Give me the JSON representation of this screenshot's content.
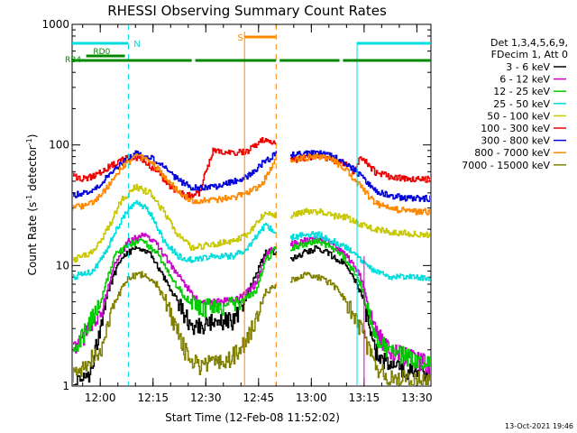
{
  "chart_data": {
    "type": "line",
    "title": "RHESSI Observing Summary Count Rates",
    "xlabel": "Start Time (12-Feb-08 11:52:02)",
    "ylabel_main": "Count Rate (s",
    "ylabel_sup1": "-1",
    "ylabel_mid": " detector",
    "ylabel_sup2": "-1",
    "ylabel_end": ")",
    "y_scale": "log",
    "ylim": [
      1,
      1000
    ],
    "xlim_minutes_after_1152": [
      0,
      102
    ],
    "x_ticks": [
      {
        "label": "12:00",
        "m": 8
      },
      {
        "label": "12:15",
        "m": 23
      },
      {
        "label": "12:30",
        "m": 38
      },
      {
        "label": "12:45",
        "m": 53
      },
      {
        "label": "13:00",
        "m": 68
      },
      {
        "label": "13:15",
        "m": 83
      },
      {
        "label": "13:30",
        "m": 98
      }
    ],
    "y_ticks": [
      {
        "label": "1",
        "v": 1
      },
      {
        "label": "10",
        "v": 10
      },
      {
        "label": "100",
        "v": 100
      },
      {
        "label": "1000",
        "v": 1000
      }
    ],
    "legend_title": [
      "Det 1,3,4,5,6,9,",
      "FDecim 1, Att 0"
    ],
    "timestamp": "13-Oct-2021 19:46",
    "flag_labels": {
      "n": "N",
      "s": "S",
      "rd0": "RD0",
      "rb4": "RB4"
    },
    "flags": {
      "n_segments": [
        [
          0,
          16
        ],
        [
          81,
          102
        ]
      ],
      "s_segments": [
        [
          49,
          58
        ]
      ],
      "rd0_segments": [
        [
          4,
          15
        ]
      ],
      "rb4_segments": [
        [
          0,
          34
        ],
        [
          35,
          58
        ],
        [
          59,
          76
        ],
        [
          77,
          102
        ]
      ]
    },
    "vertical_markers": {
      "cyan_dashed": [
        16,
        102
      ],
      "orange_dashed": [
        58
      ],
      "cyan_solid": [
        0,
        81
      ],
      "orange_solid": [
        49
      ],
      "magenta_solid": [
        83
      ]
    },
    "gap_minutes": [
      58,
      62
    ],
    "series": [
      {
        "name": "3 - 6 keV",
        "color": "#000000",
        "points": [
          [
            0,
            1.0
          ],
          [
            5,
            1.3
          ],
          [
            10,
            6
          ],
          [
            14,
            12
          ],
          [
            18,
            14
          ],
          [
            22,
            13
          ],
          [
            26,
            8
          ],
          [
            30,
            5
          ],
          [
            34,
            3
          ],
          [
            40,
            3.5
          ],
          [
            46,
            3.5
          ],
          [
            50,
            6
          ],
          [
            55,
            13
          ],
          [
            58,
            13
          ],
          [
            62,
            11
          ],
          [
            66,
            13
          ],
          [
            70,
            14
          ],
          [
            74,
            12
          ],
          [
            78,
            10
          ],
          [
            82,
            6
          ],
          [
            86,
            2
          ],
          [
            90,
            1.5
          ],
          [
            102,
            1.2
          ]
        ]
      },
      {
        "name": "6 - 12 keV",
        "color": "#cc00cc",
        "points": [
          [
            0,
            2
          ],
          [
            8,
            4
          ],
          [
            12,
            10
          ],
          [
            16,
            16
          ],
          [
            20,
            18
          ],
          [
            24,
            15
          ],
          [
            28,
            10
          ],
          [
            32,
            7
          ],
          [
            36,
            5
          ],
          [
            42,
            5
          ],
          [
            48,
            5.5
          ],
          [
            52,
            7
          ],
          [
            55,
            12
          ],
          [
            58,
            15
          ],
          [
            62,
            15
          ],
          [
            66,
            16
          ],
          [
            70,
            17
          ],
          [
            74,
            15
          ],
          [
            78,
            12
          ],
          [
            82,
            8
          ],
          [
            86,
            3
          ],
          [
            90,
            2
          ],
          [
            102,
            1.5
          ]
        ]
      },
      {
        "name": "12 - 25 keV",
        "color": "#00cc00",
        "points": [
          [
            0,
            1.8
          ],
          [
            8,
            5
          ],
          [
            12,
            12
          ],
          [
            16,
            15
          ],
          [
            20,
            16
          ],
          [
            24,
            13
          ],
          [
            28,
            8
          ],
          [
            32,
            5.5
          ],
          [
            36,
            4.5
          ],
          [
            42,
            4.5
          ],
          [
            48,
            5
          ],
          [
            52,
            6
          ],
          [
            55,
            11
          ],
          [
            58,
            14
          ],
          [
            62,
            14
          ],
          [
            66,
            15
          ],
          [
            70,
            16
          ],
          [
            74,
            14
          ],
          [
            78,
            11
          ],
          [
            82,
            7
          ],
          [
            86,
            2.5
          ],
          [
            90,
            2
          ],
          [
            102,
            1.5
          ]
        ]
      },
      {
        "name": "25 - 50 keV",
        "color": "#00dddd",
        "points": [
          [
            0,
            8
          ],
          [
            6,
            9
          ],
          [
            10,
            14
          ],
          [
            14,
            24
          ],
          [
            18,
            35
          ],
          [
            22,
            28
          ],
          [
            26,
            16
          ],
          [
            30,
            12
          ],
          [
            34,
            11
          ],
          [
            40,
            12
          ],
          [
            46,
            12
          ],
          [
            50,
            14
          ],
          [
            55,
            22
          ],
          [
            58,
            18
          ],
          [
            62,
            17
          ],
          [
            66,
            18
          ],
          [
            70,
            18
          ],
          [
            74,
            16
          ],
          [
            78,
            14
          ],
          [
            82,
            11
          ],
          [
            86,
            9
          ],
          [
            90,
            8
          ],
          [
            102,
            8
          ]
        ]
      },
      {
        "name": "50 - 100 keV",
        "color": "#c8c800",
        "points": [
          [
            0,
            11
          ],
          [
            6,
            13
          ],
          [
            10,
            20
          ],
          [
            14,
            35
          ],
          [
            18,
            45
          ],
          [
            22,
            40
          ],
          [
            26,
            28
          ],
          [
            30,
            18
          ],
          [
            34,
            14
          ],
          [
            40,
            15
          ],
          [
            46,
            16
          ],
          [
            50,
            18
          ],
          [
            55,
            28
          ],
          [
            58,
            26
          ],
          [
            62,
            26
          ],
          [
            66,
            28
          ],
          [
            70,
            28
          ],
          [
            74,
            26
          ],
          [
            78,
            25
          ],
          [
            82,
            22
          ],
          [
            86,
            20
          ],
          [
            90,
            19
          ],
          [
            102,
            18
          ]
        ]
      },
      {
        "name": "100 - 300 keV",
        "color": "#ee0000",
        "points": [
          [
            0,
            55
          ],
          [
            4,
            52
          ],
          [
            8,
            60
          ],
          [
            12,
            70
          ],
          [
            16,
            80
          ],
          [
            20,
            75
          ],
          [
            24,
            60
          ],
          [
            28,
            45
          ],
          [
            32,
            38
          ],
          [
            36,
            40
          ],
          [
            40,
            90
          ],
          [
            46,
            85
          ],
          [
            50,
            90
          ],
          [
            54,
            110
          ],
          [
            58,
            100
          ],
          [
            62,
            75
          ],
          [
            66,
            78
          ],
          [
            70,
            80
          ],
          [
            74,
            75
          ],
          [
            78,
            70
          ],
          [
            80,
            58
          ],
          [
            82,
            80
          ],
          [
            86,
            60
          ],
          [
            90,
            55
          ],
          [
            96,
            52
          ],
          [
            102,
            52
          ]
        ]
      },
      {
        "name": "300 - 800 keV",
        "color": "#0000dd",
        "points": [
          [
            0,
            38
          ],
          [
            6,
            42
          ],
          [
            10,
            55
          ],
          [
            14,
            70
          ],
          [
            18,
            85
          ],
          [
            22,
            80
          ],
          [
            26,
            65
          ],
          [
            30,
            52
          ],
          [
            34,
            44
          ],
          [
            40,
            45
          ],
          [
            46,
            50
          ],
          [
            50,
            55
          ],
          [
            54,
            70
          ],
          [
            58,
            85
          ],
          [
            62,
            82
          ],
          [
            66,
            85
          ],
          [
            70,
            85
          ],
          [
            74,
            80
          ],
          [
            78,
            70
          ],
          [
            82,
            55
          ],
          [
            86,
            42
          ],
          [
            90,
            38
          ],
          [
            96,
            36
          ],
          [
            102,
            36
          ]
        ]
      },
      {
        "name": "800 - 7000 keV",
        "color": "#ff8800",
        "points": [
          [
            0,
            30
          ],
          [
            6,
            33
          ],
          [
            10,
            45
          ],
          [
            14,
            65
          ],
          [
            18,
            80
          ],
          [
            22,
            75
          ],
          [
            26,
            55
          ],
          [
            30,
            42
          ],
          [
            34,
            34
          ],
          [
            40,
            35
          ],
          [
            46,
            37
          ],
          [
            50,
            40
          ],
          [
            54,
            48
          ],
          [
            58,
            78
          ],
          [
            62,
            75
          ],
          [
            66,
            78
          ],
          [
            70,
            80
          ],
          [
            74,
            75
          ],
          [
            78,
            62
          ],
          [
            82,
            45
          ],
          [
            86,
            33
          ],
          [
            90,
            30
          ],
          [
            96,
            28
          ],
          [
            102,
            28
          ]
        ]
      },
      {
        "name": "7000 - 15000 keV",
        "color": "#808000",
        "points": [
          [
            0,
            1.2
          ],
          [
            8,
            2
          ],
          [
            12,
            5
          ],
          [
            16,
            8
          ],
          [
            20,
            8.5
          ],
          [
            24,
            7
          ],
          [
            28,
            4
          ],
          [
            32,
            2
          ],
          [
            36,
            1.5
          ],
          [
            44,
            1.6
          ],
          [
            50,
            2.5
          ],
          [
            55,
            6
          ],
          [
            58,
            7
          ],
          [
            62,
            7.5
          ],
          [
            66,
            8.5
          ],
          [
            70,
            8
          ],
          [
            74,
            7
          ],
          [
            78,
            5
          ],
          [
            82,
            3
          ],
          [
            86,
            1.5
          ],
          [
            90,
            1.2
          ],
          [
            102,
            1.1
          ]
        ]
      }
    ]
  }
}
